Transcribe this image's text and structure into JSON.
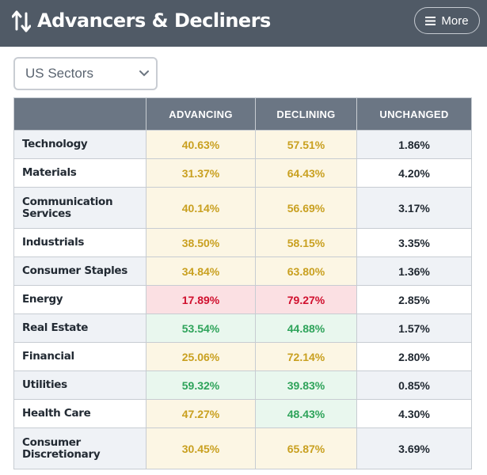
{
  "header": {
    "title": "Advancers & Decliners",
    "more_label": "More"
  },
  "filter": {
    "selected": "US Sectors"
  },
  "table": {
    "columns": [
      "",
      "ADVANCING",
      "DECLINING",
      "UNCHANGED"
    ],
    "rows": [
      {
        "sector": "Technology",
        "advancing": "40.63%",
        "declining": "57.51%",
        "unchanged": "1.86%",
        "adv_status": "yellow",
        "dec_status": "yellow"
      },
      {
        "sector": "Materials",
        "advancing": "31.37%",
        "declining": "64.43%",
        "unchanged": "4.20%",
        "adv_status": "yellow",
        "dec_status": "yellow"
      },
      {
        "sector": "Communication Services",
        "advancing": "40.14%",
        "declining": "56.69%",
        "unchanged": "3.17%",
        "adv_status": "yellow",
        "dec_status": "yellow"
      },
      {
        "sector": "Industrials",
        "advancing": "38.50%",
        "declining": "58.15%",
        "unchanged": "3.35%",
        "adv_status": "yellow",
        "dec_status": "yellow"
      },
      {
        "sector": "Consumer Staples",
        "advancing": "34.84%",
        "declining": "63.80%",
        "unchanged": "1.36%",
        "adv_status": "yellow",
        "dec_status": "yellow"
      },
      {
        "sector": "Energy",
        "advancing": "17.89%",
        "declining": "79.27%",
        "unchanged": "2.85%",
        "adv_status": "red",
        "dec_status": "red"
      },
      {
        "sector": "Real Estate",
        "advancing": "53.54%",
        "declining": "44.88%",
        "unchanged": "1.57%",
        "adv_status": "green",
        "dec_status": "green"
      },
      {
        "sector": "Financial",
        "advancing": "25.06%",
        "declining": "72.14%",
        "unchanged": "2.80%",
        "adv_status": "yellow",
        "dec_status": "yellow"
      },
      {
        "sector": "Utilities",
        "advancing": "59.32%",
        "declining": "39.83%",
        "unchanged": "0.85%",
        "adv_status": "green",
        "dec_status": "green"
      },
      {
        "sector": "Health Care",
        "advancing": "47.27%",
        "declining": "48.43%",
        "unchanged": "4.30%",
        "adv_status": "yellow",
        "dec_status": "green"
      },
      {
        "sector": "Consumer Discretionary",
        "advancing": "30.45%",
        "declining": "65.87%",
        "unchanged": "3.69%",
        "adv_status": "yellow",
        "dec_status": "yellow"
      }
    ]
  },
  "colors": {
    "header_bg": "#505a66",
    "table_header_bg": "#6b7684",
    "yellow_text": "#c9a020",
    "red_text": "#d0102e",
    "green_text": "#2ea35a"
  },
  "icons": {
    "title_icon": "sort-arrows-icon",
    "more_icon": "menu-icon",
    "select_icon": "chevron-down-icon"
  }
}
